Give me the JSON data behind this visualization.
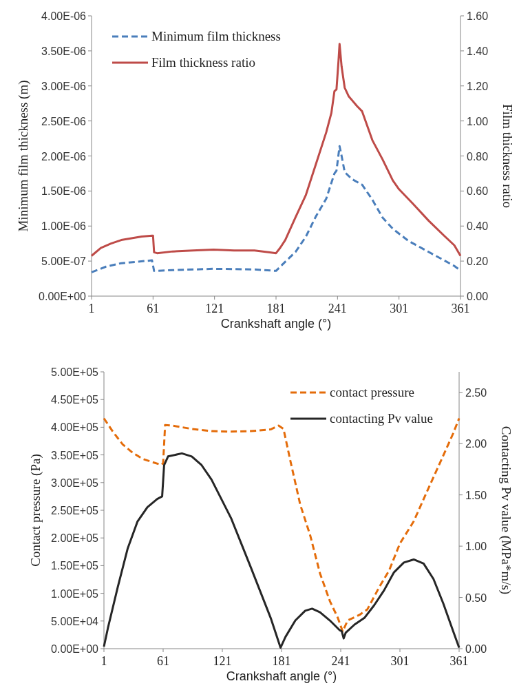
{
  "chart_data": [
    {
      "type": "line",
      "xlabel": "Crankshaft angle (°)",
      "ylabel": "Minimum film thickness (m)",
      "y2label": "Film thickness ratio",
      "xlim": [
        1,
        361
      ],
      "xticks": [
        1,
        61,
        121,
        181,
        241,
        301,
        361
      ],
      "ylim": [
        0,
        4e-06
      ],
      "yticks": [
        {
          "value": 0,
          "label": "0.00E+00"
        },
        {
          "value": 5e-07,
          "label": "5.00E-07"
        },
        {
          "value": 1e-06,
          "label": "1.00E-06"
        },
        {
          "value": 1.5e-06,
          "label": "1.50E-06"
        },
        {
          "value": 2e-06,
          "label": "2.00E-06"
        },
        {
          "value": 2.5e-06,
          "label": "2.50E-06"
        },
        {
          "value": 3e-06,
          "label": "3.00E-06"
        },
        {
          "value": 3.5e-06,
          "label": "3.50E-06"
        },
        {
          "value": 4e-06,
          "label": "4.00E-06"
        }
      ],
      "y2lim": [
        0,
        1.6
      ],
      "y2ticks": [
        {
          "value": 0,
          "label": "0.00"
        },
        {
          "value": 0.2,
          "label": "0.20"
        },
        {
          "value": 0.4,
          "label": "0.40"
        },
        {
          "value": 0.6,
          "label": "0.60"
        },
        {
          "value": 0.8,
          "label": "0.80"
        },
        {
          "value": 1,
          "label": "1.00"
        },
        {
          "value": 1.2,
          "label": "1.20"
        },
        {
          "value": 1.4,
          "label": "1.40"
        },
        {
          "value": 1.6,
          "label": "1.60"
        }
      ],
      "grid": false,
      "legend": "top left",
      "series": [
        {
          "name": "Minimum film thickness",
          "color": "#4a7ebb",
          "line_style": "dashed",
          "x": [
            1,
            15,
            30,
            45,
            60,
            62,
            80,
            120,
            160,
            181,
            190,
            200,
            210,
            220,
            230,
            238,
            240,
            243,
            245,
            248,
            255,
            265,
            275,
            285,
            295,
            310,
            325,
            340,
            355,
            361
          ],
          "values": [
            3.4e-07,
            4.2e-07,
            4.7e-07,
            4.9e-07,
            5.1e-07,
            3.6e-07,
            3.7e-07,
            3.9e-07,
            3.8e-07,
            3.6e-07,
            4.9e-07,
            6.3e-07,
            8.45e-07,
            1.14e-06,
            1.39e-06,
            1.75e-06,
            1.79e-06,
            2.14e-06,
            2e-06,
            1.77e-06,
            1.67e-06,
            1.59e-06,
            1.375e-06,
            1.12e-06,
            9.6e-07,
            7.9e-07,
            6.7e-07,
            5.5e-07,
            4.3e-07,
            3.65e-07
          ]
        },
        {
          "name": "Film thickness ratio",
          "color": "#be4b48",
          "line_style": "solid",
          "axis": "y2",
          "x": [
            1,
            10,
            20,
            30,
            40,
            50,
            60,
            61,
            62,
            65,
            80,
            100,
            120,
            140,
            160,
            175,
            181,
            185,
            190,
            200,
            210,
            220,
            230,
            235,
            238,
            240,
            242,
            243,
            245,
            248,
            252,
            260,
            265,
            275,
            285,
            295,
            301,
            315,
            330,
            345,
            355,
            361
          ],
          "values": [
            0.23,
            0.275,
            0.3,
            0.32,
            0.33,
            0.34,
            0.345,
            0.345,
            0.25,
            0.245,
            0.255,
            0.26,
            0.265,
            0.26,
            0.26,
            0.25,
            0.245,
            0.275,
            0.32,
            0.45,
            0.575,
            0.755,
            0.935,
            1.045,
            1.17,
            1.18,
            1.345,
            1.44,
            1.31,
            1.19,
            1.14,
            1.085,
            1.055,
            0.89,
            0.78,
            0.66,
            0.61,
            0.525,
            0.43,
            0.345,
            0.29,
            0.23
          ]
        }
      ]
    },
    {
      "type": "line",
      "xlabel": "Crankshaft angle (°)",
      "ylabel": "Contact pressure (Pa)",
      "y2label": "Contacting Pv value (MPa*m/s)",
      "xlim": [
        1,
        361
      ],
      "xticks": [
        1,
        61,
        121,
        181,
        241,
        301,
        361
      ],
      "ylim": [
        0,
        500000.0
      ],
      "yticks": [
        {
          "value": 0,
          "label": "0.00E+00"
        },
        {
          "value": 50000.0,
          "label": "5.00E+04"
        },
        {
          "value": 100000.0,
          "label": "1.00E+05"
        },
        {
          "value": 150000.0,
          "label": "1.50E+05"
        },
        {
          "value": 200000.0,
          "label": "2.00E+05"
        },
        {
          "value": 250000.0,
          "label": "2.50E+05"
        },
        {
          "value": 300000.0,
          "label": "3.00E+05"
        },
        {
          "value": 350000.0,
          "label": "3.50E+05"
        },
        {
          "value": 400000.0,
          "label": "4.00E+05"
        },
        {
          "value": 450000.0,
          "label": "4.50E+05"
        },
        {
          "value": 500000.0,
          "label": "5.00E+05"
        }
      ],
      "y2lim": [
        0,
        2.7
      ],
      "y2ticks": [
        {
          "value": 0,
          "label": "0.00"
        },
        {
          "value": 0.5,
          "label": "0.50"
        },
        {
          "value": 1,
          "label": "1.00"
        },
        {
          "value": 1.5,
          "label": "1.50"
        },
        {
          "value": 2,
          "label": "2.00"
        },
        {
          "value": 2.5,
          "label": "2.50"
        }
      ],
      "grid": false,
      "legend": "top right",
      "series": [
        {
          "name": "contact pressure",
          "color": "#e46c0a",
          "line_style": "dashed",
          "x": [
            1,
            10,
            20,
            30,
            40,
            50,
            59,
            61,
            63,
            70,
            90,
            110,
            130,
            150,
            170,
            178,
            183,
            190,
            200,
            210,
            220,
            230,
            238,
            243,
            248,
            260,
            268,
            280,
            290,
            301,
            315,
            330,
            345,
            355,
            361
          ],
          "values": [
            416000,
            392000,
            369000,
            354000,
            343000,
            337000,
            332000,
            335000,
            404000,
            403000,
            397000,
            393000,
            392000,
            393000,
            396000,
            403000,
            397000,
            339000,
            260000,
            205000,
            136000,
            86000,
            56000,
            31000,
            51000,
            61000,
            71000,
            111000,
            141000,
            190000,
            230000,
            290000,
            349000,
            389000,
            416000
          ]
        },
        {
          "name": "contacting Pv value",
          "color": "#262626",
          "line_style": "solid",
          "axis": "y2",
          "x": [
            1,
            5,
            15,
            25,
            35,
            45,
            55,
            60,
            62,
            66,
            80,
            90,
            100,
            110,
            120,
            130,
            140,
            150,
            160,
            170,
            180,
            185,
            195,
            205,
            212,
            220,
            230,
            240,
            242,
            244,
            246,
            255,
            265,
            275,
            285,
            295,
            305,
            315,
            325,
            335,
            345,
            355,
            361
          ],
          "values": [
            0.02,
            0.2,
            0.6,
            0.975,
            1.24,
            1.38,
            1.46,
            1.485,
            1.79,
            1.875,
            1.905,
            1.875,
            1.79,
            1.65,
            1.46,
            1.27,
            1.03,
            0.79,
            0.545,
            0.3,
            0.01,
            0.115,
            0.275,
            0.37,
            0.39,
            0.355,
            0.275,
            0.18,
            0.17,
            0.1,
            0.155,
            0.235,
            0.3,
            0.425,
            0.57,
            0.745,
            0.84,
            0.87,
            0.83,
            0.68,
            0.44,
            0.17,
            0.01
          ]
        }
      ]
    }
  ]
}
